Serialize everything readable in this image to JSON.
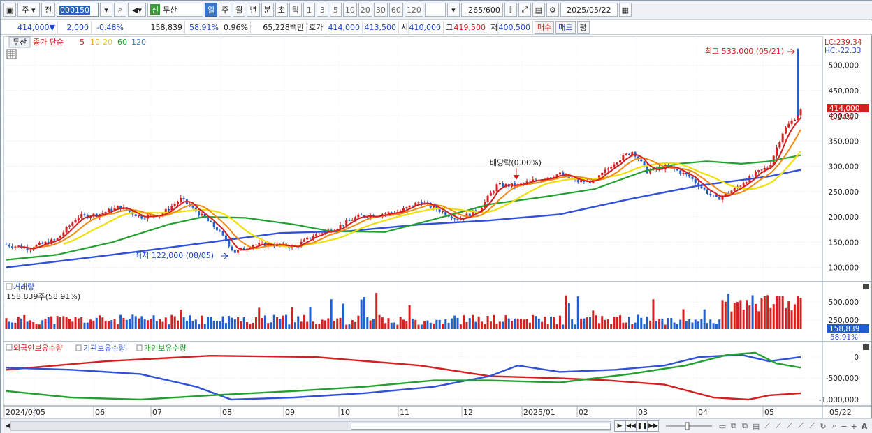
{
  "toolbar": {
    "market_label": "주",
    "prev_label": "전",
    "stock_code": "000150",
    "new_badge": "신",
    "stock_name": "두산",
    "periods": [
      "일",
      "주",
      "월",
      "년",
      "분",
      "초",
      "틱"
    ],
    "intervals": [
      "1",
      "3",
      "5",
      "10",
      "20",
      "30",
      "60",
      "120"
    ],
    "count": "265/600",
    "date": "2025/05/22"
  },
  "info": {
    "price": "414,000",
    "change_arrow": "▼",
    "change": "2,000",
    "change_pct": "-0.48%",
    "volume": "158,839",
    "vol_ratio": "58.91%",
    "turnover": "0.96%",
    "amount": "65,228백만",
    "ask_label": "호가",
    "ask": "414,000",
    "bid": "413,500",
    "open_label": "시",
    "open": "410,000",
    "high_label": "고",
    "high": "419,500",
    "low_label": "저",
    "low": "400,500",
    "buy_label": "매수",
    "sell_label": "매도",
    "avg_label": "평"
  },
  "price_panel": {
    "tab_label": "두산",
    "legend_title": "종가 단순",
    "ma_legend": [
      {
        "label": "5",
        "color": "#d42020"
      },
      {
        "label": "10",
        "color": "#f08a10"
      },
      {
        "label": "20",
        "color": "#f0e000"
      },
      {
        "label": "60",
        "color": "#22a030"
      },
      {
        "label": "120",
        "color": "#3050d8"
      }
    ],
    "lc_label": "LC:239.34",
    "hc_label": "HC:-22.33",
    "axis": [
      "500,000",
      "450,000",
      "400,000",
      "350,000",
      "300,000",
      "250,000",
      "200,000",
      "150,000",
      "100,000"
    ],
    "current_price_tag": "414,000",
    "current_pct_tag": "0.24%",
    "high_annotation": "최고 533,000 (05/21)",
    "low_annotation": "최저 122,000 (08/05)",
    "dividend_annotation": "배당락(0.00%)"
  },
  "volume_panel": {
    "title": "거래량",
    "value_label": "158,839주(58.91%)",
    "axis": [
      "500,000",
      "250,000"
    ],
    "tag_value": "158,839",
    "tag_pct": "58.91%"
  },
  "holding_panel": {
    "legend": [
      {
        "label": "외국인보유수량",
        "color": "#d42020"
      },
      {
        "label": "기관보유수량",
        "color": "#3050d8"
      },
      {
        "label": "개인보유수량",
        "color": "#22a030"
      }
    ],
    "axis": [
      "0",
      "-500,000",
      "-1,000,000"
    ]
  },
  "xaxis": {
    "labels": [
      "2024/04",
      "05",
      "06",
      "07",
      "08",
      "09",
      "10",
      "11",
      "12",
      "2025/01",
      "02",
      "03",
      "04",
      "05"
    ],
    "right_label": "05/22"
  },
  "colors": {
    "up": "#d42020",
    "down": "#1f5fd0",
    "ma5": "#d42020",
    "ma10": "#f08a10",
    "ma20": "#f0e000",
    "ma60": "#22a030",
    "ma120": "#3050d8"
  }
}
